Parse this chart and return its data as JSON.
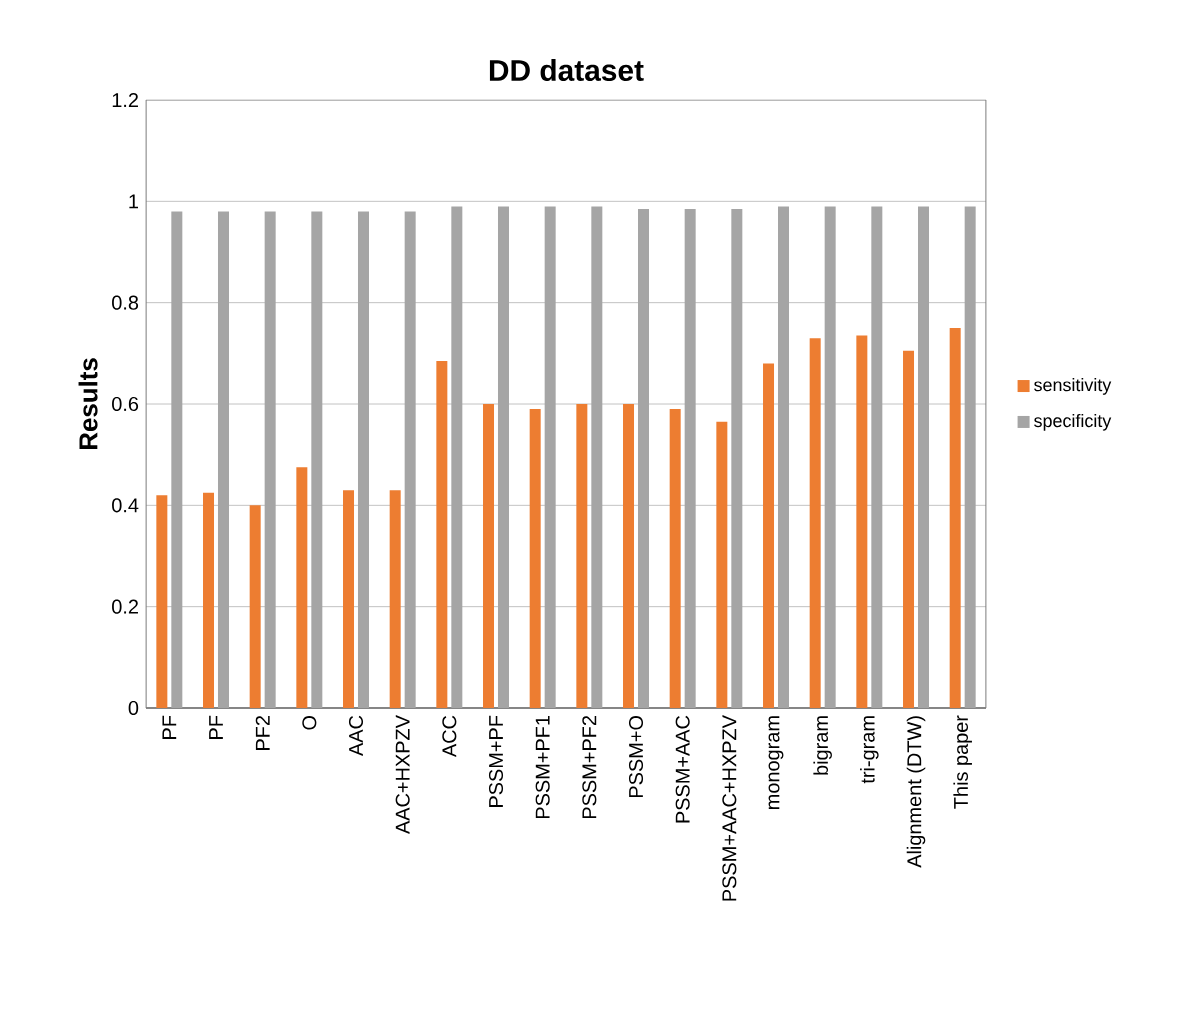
{
  "chart_data": {
    "type": "bar",
    "title": "DD dataset",
    "ylabel": "Results",
    "categories": [
      "PF",
      "PF",
      "PF2",
      "O",
      "AAC",
      "AAC+HXPZV",
      "ACC",
      "PSSM+PF",
      "PSSM+PF1",
      "PSSM+PF2",
      "PSSM+O",
      "PSSM+AAC",
      "PSSM+AAC+HXPZV",
      "monogram",
      "bigram",
      "tri-gram",
      "Alignment (DTW)",
      "This paper"
    ],
    "series": [
      {
        "name": "sensitivity",
        "color": "#ed7d31",
        "values": [
          0.42,
          0.425,
          0.4,
          0.475,
          0.43,
          0.43,
          0.685,
          0.6,
          0.59,
          0.6,
          0.6,
          0.59,
          0.565,
          0.68,
          0.73,
          0.735,
          0.705,
          0.75
        ]
      },
      {
        "name": "specificity",
        "color": "#a5a5a5",
        "values": [
          0.98,
          0.98,
          0.98,
          0.98,
          0.98,
          0.98,
          0.99,
          0.99,
          0.99,
          0.99,
          0.985,
          0.985,
          0.985,
          0.99,
          0.99,
          0.99,
          0.99,
          0.99
        ]
      }
    ],
    "ylim": [
      0,
      1.2
    ],
    "yticks": [
      0,
      0.2,
      0.4,
      0.6,
      0.8,
      1,
      1.2
    ],
    "grid": "y",
    "legend": "right"
  }
}
